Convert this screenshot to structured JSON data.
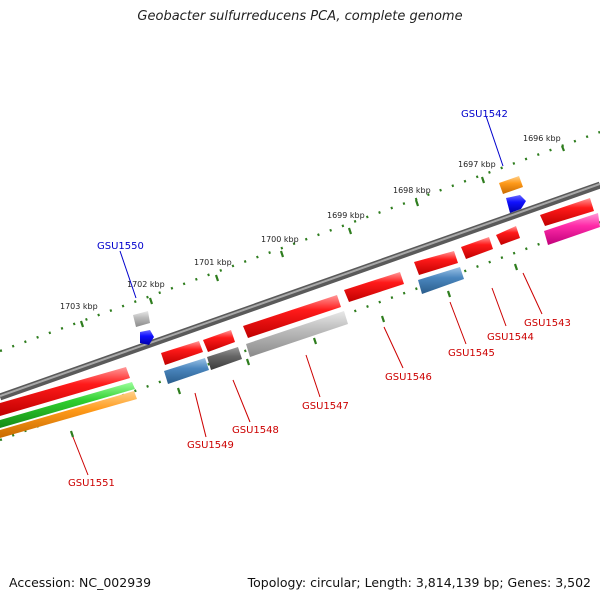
{
  "title": "Geobacter sulfurreducens PCA, complete genome",
  "footer": {
    "accession": "Accession: NC_002939",
    "summary": "Topology: circular; Length: 3,814,139 bp; Genes: 3,502"
  },
  "scale_labels": [
    "1696 kbp",
    "1697 kbp",
    "1698 kbp",
    "1699 kbp",
    "1700 kbp",
    "1701 kbp",
    "1702 kbp",
    "1703 kbp"
  ],
  "genes": {
    "gsu1542": "GSU1542",
    "gsu1543": "GSU1543",
    "gsu1544": "GSU1544",
    "gsu1545": "GSU1545",
    "gsu1546": "GSU1546",
    "gsu1547": "GSU1547",
    "gsu1548": "GSU1548",
    "gsu1549": "GSU1549",
    "gsu1550": "GSU1550",
    "gsu1551": "GSU1551"
  },
  "colors": {
    "backbone": "#7a7a7a",
    "forward_gene": "#ff1a1a",
    "label_forward": "#cc0000",
    "label_reverse": "#0000cc",
    "tick": "#2e7d1e"
  }
}
